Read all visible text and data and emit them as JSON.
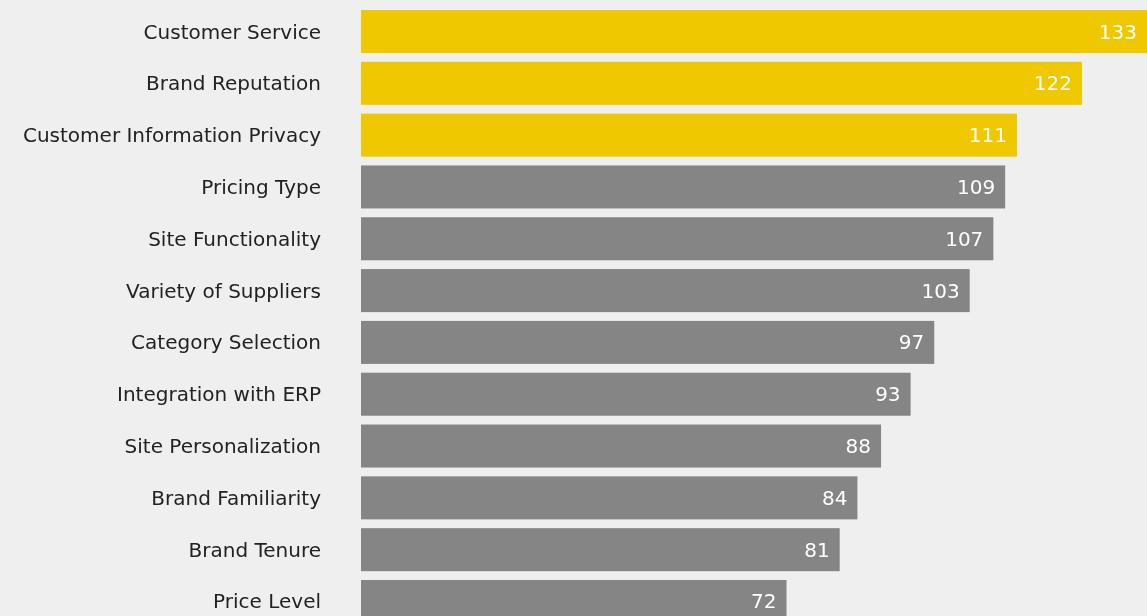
{
  "chart_data": {
    "type": "bar",
    "orientation": "horizontal",
    "categories": [
      "Customer Service",
      "Brand Reputation",
      "Customer Information Privacy",
      "Pricing Type",
      "Site Functionality",
      "Variety of Suppliers",
      "Category Selection",
      "Integration with ERP",
      "Site Personalization",
      "Brand Familiarity",
      "Brand Tenure",
      "Price Level"
    ],
    "values": [
      133,
      122,
      111,
      109,
      107,
      103,
      97,
      93,
      88,
      84,
      81,
      72
    ],
    "colors": [
      "#f0c800",
      "#f0c800",
      "#f0c800",
      "#858585",
      "#858585",
      "#858585",
      "#858585",
      "#858585",
      "#858585",
      "#858585",
      "#858585",
      "#858585"
    ],
    "data_labels": true
  }
}
